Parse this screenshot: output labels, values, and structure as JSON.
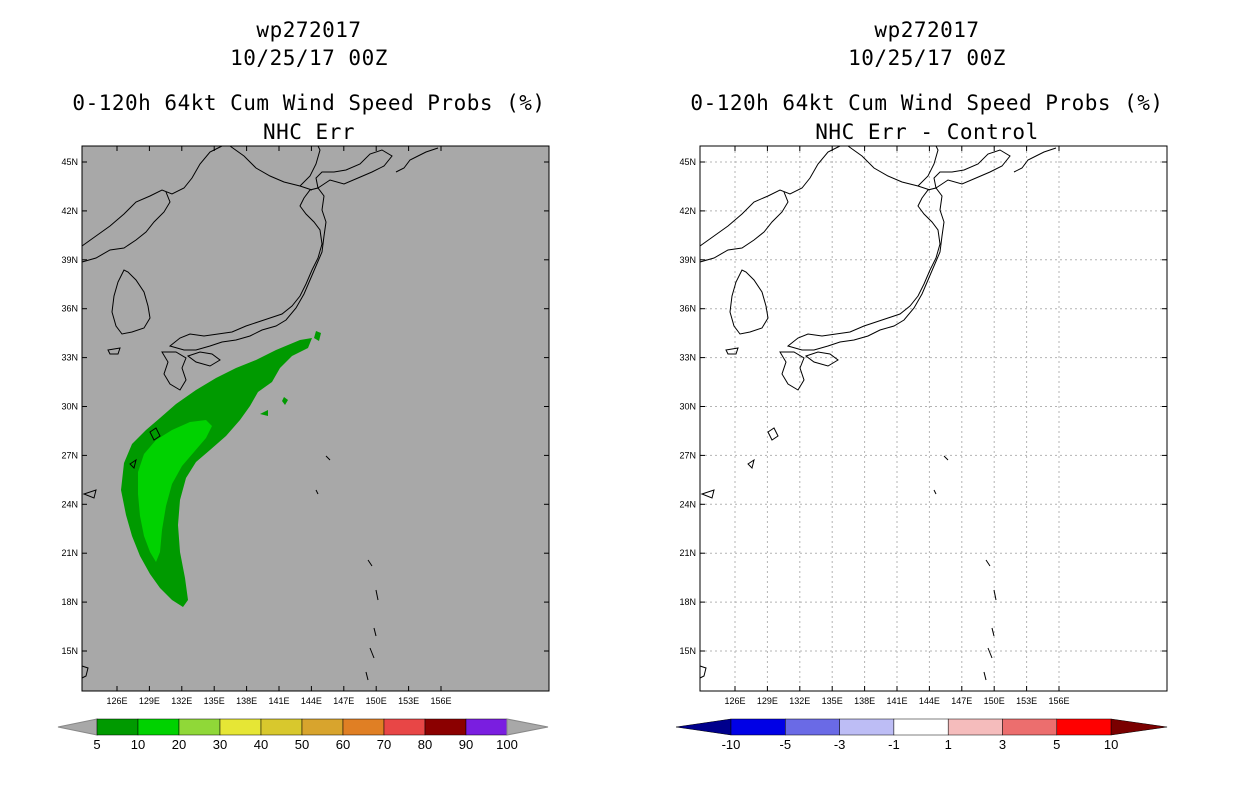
{
  "left_panel": {
    "title_storm": "wp272017",
    "title_date": "10/25/17 00Z",
    "title_product": "0-120h 64kt Cum Wind Speed Probs (%)",
    "title_subtitle": "NHC Err",
    "background_color": "#a8a8a8",
    "colorbar": {
      "labels": [
        "5",
        "10",
        "20",
        "30",
        "40",
        "50",
        "60",
        "70",
        "80",
        "90",
        "100"
      ],
      "colors": [
        "#009a00",
        "#00d200",
        "#90d838",
        "#e6e635",
        "#d8c82d",
        "#d8a42d",
        "#e07f24",
        "#e84646",
        "#8b0000",
        "#7a1ee0"
      ],
      "end_color": "#a8a8a8"
    }
  },
  "right_panel": {
    "title_storm": "wp272017",
    "title_date": "10/25/17 00Z",
    "title_product": "0-120h 64kt Cum Wind Speed Probs (%)",
    "title_subtitle": "NHC Err - Control",
    "background_color": "#ffffff",
    "colorbar": {
      "labels": [
        "-10",
        "-5",
        "-3",
        "-1",
        "1",
        "3",
        "5",
        "10"
      ],
      "colors": [
        "#0000e6",
        "#6a6ae6",
        "#bdbdf5",
        "#ffffff",
        "#f5bcbc",
        "#ec6e6e",
        "#ff0000"
      ],
      "low_end_color": "#00008c",
      "high_end_color": "#7a0000"
    }
  },
  "map": {
    "lat_labels": [
      "45N",
      "42N",
      "39N",
      "36N",
      "33N",
      "30N",
      "27N",
      "24N",
      "21N",
      "18N",
      "15N"
    ],
    "lon_labels": [
      "126E",
      "129E",
      "132E",
      "135E",
      "138E",
      "141E",
      "144E",
      "147E",
      "150E",
      "153E",
      "156E"
    ]
  },
  "prob_colors": {
    "outer": "#009a00",
    "inner": "#00d200"
  }
}
